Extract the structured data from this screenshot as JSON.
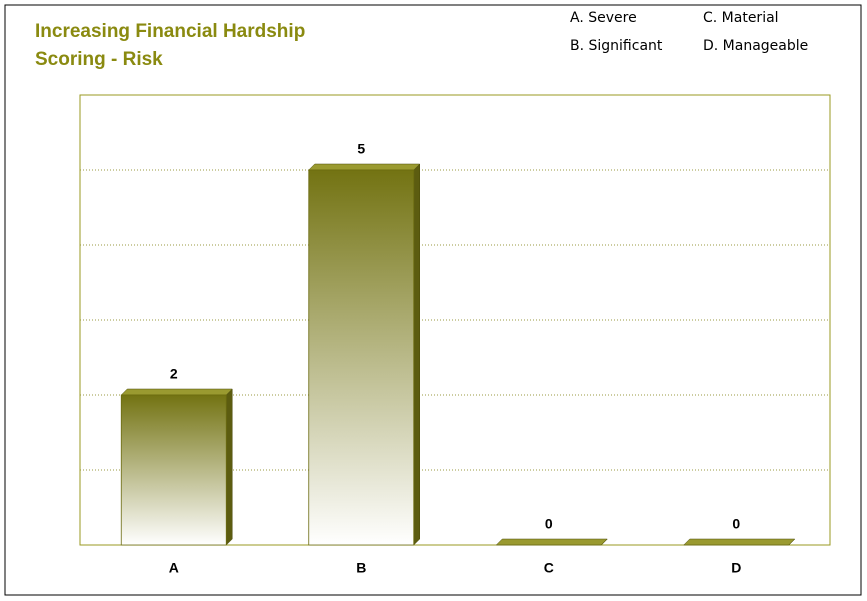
{
  "chart_data": {
    "type": "bar",
    "title": "Increasing Financial Hardship Scoring - Risk",
    "legend_notes": [
      "A. Severe",
      "C. Material",
      "B. Significant",
      "D. Manageable"
    ],
    "categories": [
      "A",
      "B",
      "C",
      "D"
    ],
    "values": [
      2,
      5,
      0,
      0
    ],
    "color": "#808000",
    "ylim": [
      0,
      6
    ],
    "yticks": [
      0,
      1,
      2,
      3,
      4,
      5,
      6
    ],
    "grid": true
  }
}
